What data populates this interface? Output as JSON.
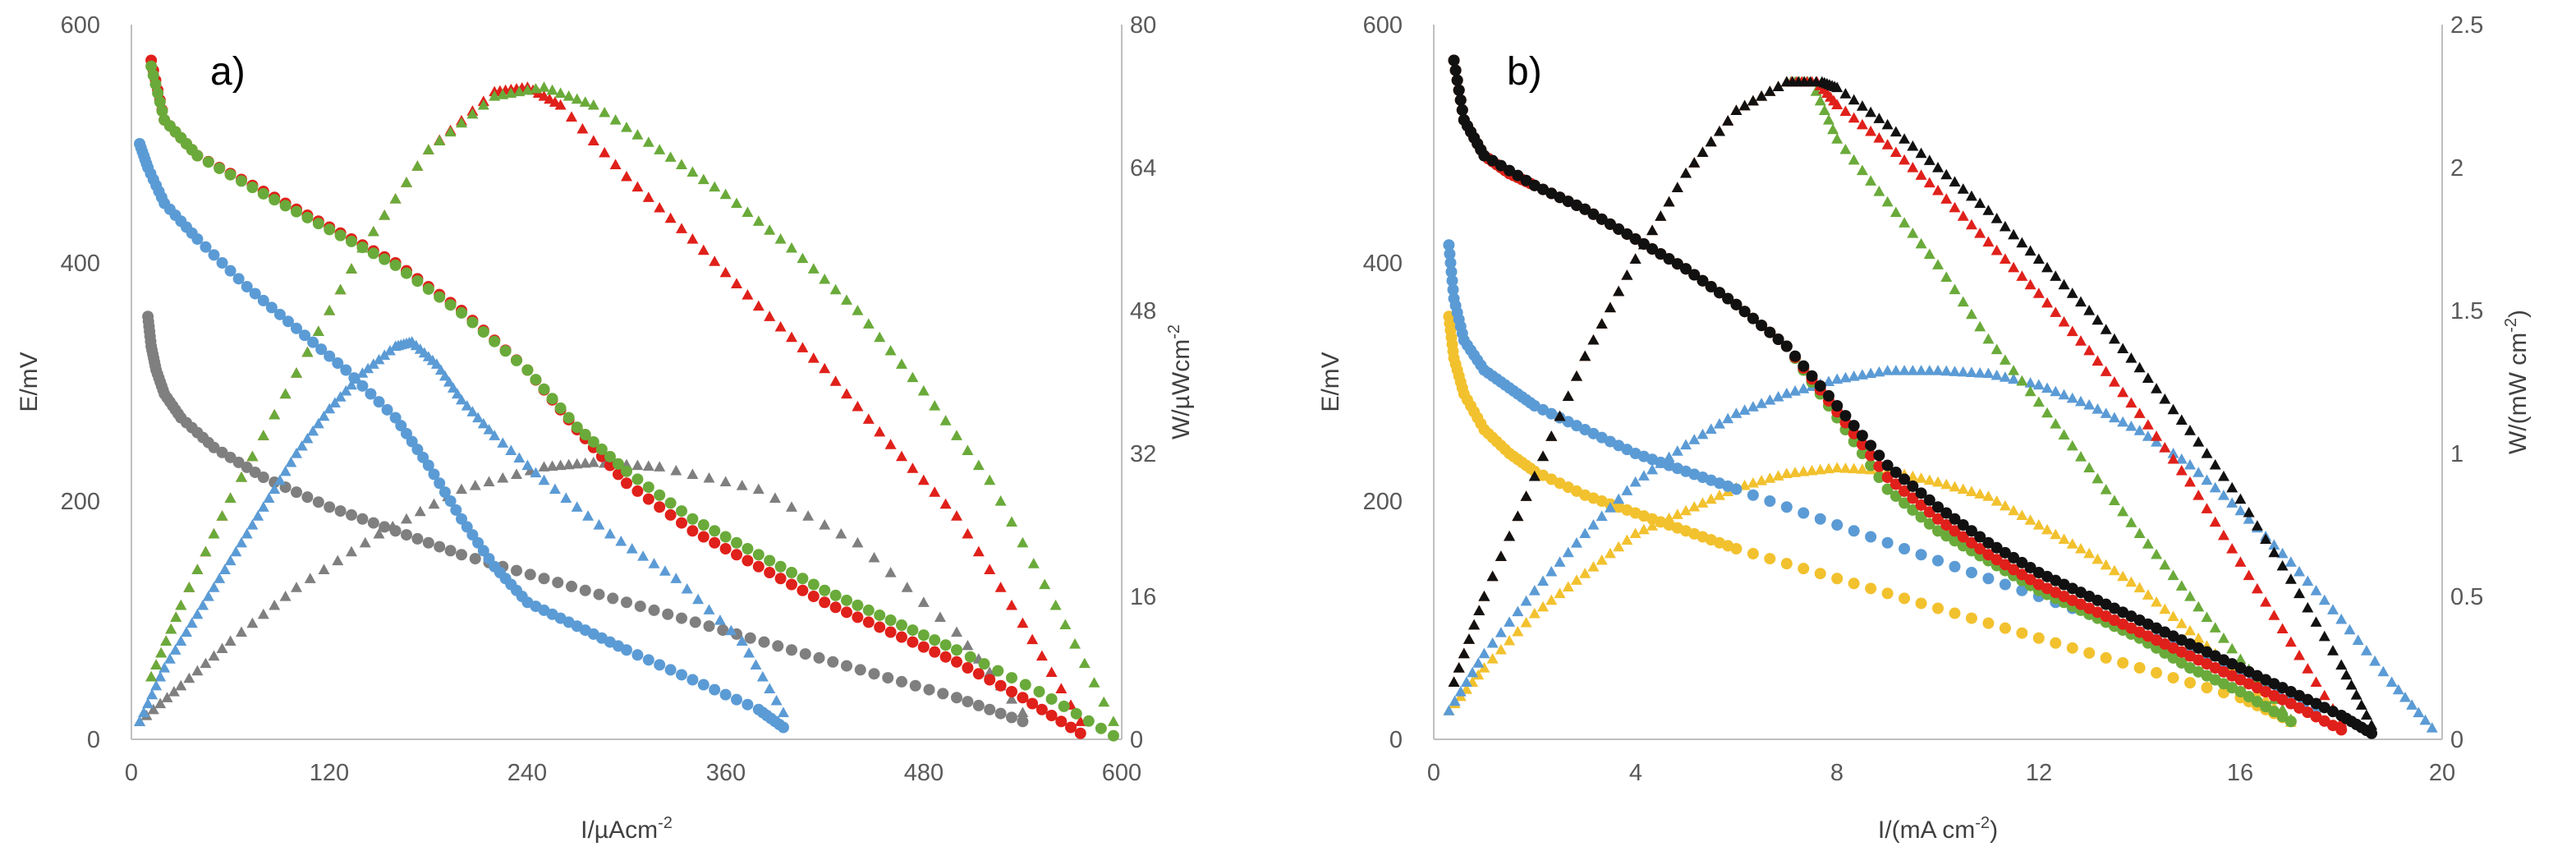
{
  "colors": {
    "gray": "#7f7f7f",
    "red": "#e0201a",
    "green": "#6aaa3a",
    "blue": "#5b9bd5",
    "black": "#111111",
    "yellow": "#f2c12e"
  },
  "chart_data": [
    {
      "type": "scatter",
      "panel_label": "a)",
      "xlabel": "I/µAcm",
      "xlabel_sup": "-2",
      "ylabel": "E/mV",
      "y2label": "W/µWcm",
      "y2label_sup": "-2",
      "xlim": [
        0,
        600
      ],
      "ylim": [
        0,
        600
      ],
      "y2lim": [
        0,
        80
      ],
      "x_ticks": [
        "0",
        "120",
        "240",
        "360",
        "480",
        "600"
      ],
      "y_ticks": [
        "0",
        "200",
        "400",
        "600"
      ],
      "y2_ticks": [
        "0",
        "16",
        "32",
        "48",
        "64",
        "80"
      ],
      "grid": false,
      "series": [
        {
          "name": "gray polarization",
          "color": "gray",
          "marker": "circle",
          "axis": "left",
          "x": [
            10,
            12,
            15,
            20,
            30,
            50,
            80,
            120,
            160,
            200,
            250,
            300,
            350,
            400,
            450,
            500,
            540
          ],
          "y": [
            355,
            330,
            310,
            290,
            270,
            245,
            220,
            195,
            175,
            155,
            135,
            115,
            95,
            75,
            55,
            35,
            15
          ]
        },
        {
          "name": "gray power",
          "color": "gray",
          "marker": "triangle",
          "axis": "right",
          "x": [
            5,
            30,
            60,
            100,
            150,
            200,
            250,
            280,
            320,
            380,
            440,
            500,
            540
          ],
          "y": [
            2,
            6,
            11,
            17,
            23,
            28,
            30.5,
            31,
            30.5,
            28,
            22,
            12,
            3
          ]
        },
        {
          "name": "blue polarization",
          "color": "blue",
          "marker": "circle",
          "axis": "left",
          "x": [
            5,
            10,
            20,
            40,
            70,
            100,
            130,
            160,
            180,
            200,
            220,
            240,
            270,
            300,
            340,
            380,
            395
          ],
          "y": [
            500,
            480,
            450,
            420,
            380,
            345,
            310,
            270,
            230,
            185,
            145,
            115,
            95,
            75,
            50,
            25,
            10
          ]
        },
        {
          "name": "blue power",
          "color": "blue",
          "marker": "triangle",
          "axis": "right",
          "x": [
            5,
            20,
            40,
            60,
            80,
            100,
            120,
            140,
            160,
            170,
            185,
            200,
            220,
            250,
            290,
            330,
            370,
            395
          ],
          "y": [
            2,
            8,
            14,
            20,
            26,
            32,
            37,
            41,
            44,
            44.5,
            42,
            38,
            34,
            29,
            23,
            18,
            11,
            3
          ]
        },
        {
          "name": "red polarization",
          "color": "red",
          "marker": "circle",
          "axis": "left",
          "x": [
            12,
            20,
            40,
            80,
            120,
            160,
            200,
            240,
            270,
            300,
            340,
            380,
            420,
            460,
            500,
            540,
            575
          ],
          "y": [
            570,
            520,
            490,
            460,
            430,
            400,
            360,
            310,
            260,
            215,
            175,
            145,
            115,
            90,
            65,
            35,
            5
          ]
        },
        {
          "name": "red power",
          "color": "red",
          "marker": "triangle",
          "axis": "right",
          "x": [
            12,
            30,
            60,
            100,
            140,
            180,
            220,
            240,
            260,
            300,
            340,
            380,
            420,
            460,
            500,
            540,
            575
          ],
          "y": [
            7,
            15,
            27,
            41,
            55,
            66,
            72.5,
            73,
            71,
            63,
            56,
            48.5,
            41.5,
            33,
            25,
            13,
            2
          ]
        },
        {
          "name": "green polarization",
          "color": "green",
          "marker": "circle",
          "axis": "left",
          "x": [
            12,
            20,
            40,
            80,
            120,
            160,
            200,
            240,
            270,
            300,
            340,
            380,
            420,
            460,
            500,
            550,
            595
          ],
          "y": [
            565,
            520,
            490,
            458,
            428,
            398,
            358,
            310,
            262,
            225,
            185,
            155,
            125,
            100,
            75,
            40,
            3
          ]
        },
        {
          "name": "green power",
          "color": "green",
          "marker": "triangle",
          "axis": "right",
          "x": [
            12,
            30,
            60,
            100,
            140,
            180,
            220,
            250,
            280,
            320,
            360,
            400,
            440,
            480,
            520,
            560,
            595
          ],
          "y": [
            7,
            15,
            27,
            41,
            55,
            66,
            72,
            73,
            71,
            66,
            61,
            55,
            48,
            39,
            29,
            15,
            2
          ]
        }
      ]
    },
    {
      "type": "scatter",
      "panel_label": "b)",
      "xlabel": "I/(mA cm",
      "xlabel_sup": "-2",
      "xlabel_end": ")",
      "ylabel": "E/mV",
      "y2label": "W/(mW cm",
      "y2label_sup": "-2",
      "y2label_end": ")",
      "xlim": [
        0,
        20
      ],
      "ylim": [
        0,
        600
      ],
      "y2lim": [
        0,
        2.5
      ],
      "x_ticks": [
        "0",
        "4",
        "8",
        "12",
        "16",
        "20"
      ],
      "y_ticks": [
        "0",
        "200",
        "400",
        "600"
      ],
      "y2_ticks": [
        "0",
        "0.5",
        "1",
        "1.5",
        "2",
        "2.5"
      ],
      "grid": false,
      "series": [
        {
          "name": "yellow polarization",
          "color": "yellow",
          "marker": "circle",
          "axis": "left",
          "x": [
            0.3,
            0.4,
            0.6,
            1,
            1.5,
            2,
            3,
            4,
            5,
            6,
            8,
            10,
            12,
            14,
            16,
            17
          ],
          "y": [
            355,
            320,
            290,
            260,
            240,
            225,
            205,
            190,
            175,
            160,
            135,
            110,
            85,
            60,
            35,
            15
          ]
        },
        {
          "name": "yellow power",
          "color": "yellow",
          "marker": "triangle",
          "axis": "right",
          "x": [
            0.3,
            1,
            2,
            3,
            4,
            5,
            6,
            7,
            8,
            9,
            10,
            11,
            12,
            13,
            14,
            15,
            16,
            17
          ],
          "y": [
            0.1,
            0.25,
            0.44,
            0.58,
            0.72,
            0.8,
            0.88,
            0.93,
            0.95,
            0.94,
            0.9,
            0.85,
            0.75,
            0.65,
            0.53,
            0.38,
            0.22,
            0.06
          ]
        },
        {
          "name": "blue polarization",
          "color": "blue",
          "marker": "circle",
          "axis": "left",
          "x": [
            0.3,
            0.4,
            0.6,
            1,
            1.5,
            2,
            3,
            4,
            5,
            6,
            8,
            10,
            12,
            14,
            16,
            17.5
          ],
          "y": [
            415,
            370,
            335,
            310,
            295,
            280,
            260,
            240,
            225,
            210,
            180,
            150,
            120,
            90,
            55,
            25
          ]
        },
        {
          "name": "blue power",
          "color": "blue",
          "marker": "triangle",
          "axis": "right",
          "x": [
            0.3,
            1,
            2,
            3,
            4,
            5,
            6,
            7,
            8,
            9,
            10,
            11,
            12,
            13,
            14,
            15,
            16,
            17,
            18,
            19,
            19.8
          ],
          "y": [
            0.1,
            0.3,
            0.52,
            0.72,
            0.9,
            1.03,
            1.14,
            1.21,
            1.26,
            1.29,
            1.29,
            1.28,
            1.24,
            1.17,
            1.08,
            0.96,
            0.8,
            0.62,
            0.42,
            0.2,
            0.04
          ]
        },
        {
          "name": "green polarization",
          "color": "green",
          "marker": "circle",
          "axis": "left",
          "x": [
            0.4,
            0.6,
            1,
            1.5,
            2,
            3,
            4,
            5,
            6,
            7,
            8,
            9,
            10,
            11,
            12,
            13,
            14,
            15,
            16,
            17
          ],
          "y": [
            570,
            520,
            490,
            475,
            465,
            445,
            420,
            395,
            365,
            330,
            270,
            210,
            175,
            150,
            125,
            105,
            85,
            60,
            40,
            15
          ]
        },
        {
          "name": "green power",
          "color": "green",
          "marker": "triangle",
          "axis": "right",
          "x": [
            0.4,
            1,
            2,
            3,
            4,
            5,
            6,
            7,
            7.5,
            8,
            9,
            10,
            11,
            12,
            13,
            14,
            15,
            16,
            17
          ],
          "y": [
            0.2,
            0.5,
            0.92,
            1.34,
            1.68,
            1.98,
            2.2,
            2.3,
            2.3,
            2.1,
            1.88,
            1.66,
            1.4,
            1.18,
            0.95,
            0.72,
            0.5,
            0.28,
            0.07
          ]
        },
        {
          "name": "red polarization",
          "color": "red",
          "marker": "circle",
          "axis": "left",
          "x": [
            0.4,
            0.6,
            1,
            1.5,
            2,
            3,
            4,
            5,
            6,
            7,
            8,
            9,
            10,
            11,
            12,
            13,
            14,
            15,
            16,
            17,
            18
          ],
          "y": [
            570,
            520,
            490,
            475,
            465,
            445,
            420,
            395,
            365,
            330,
            275,
            220,
            185,
            155,
            130,
            110,
            90,
            70,
            50,
            30,
            8
          ]
        },
        {
          "name": "red power",
          "color": "red",
          "marker": "triangle",
          "axis": "right",
          "x": [
            0.4,
            1,
            2,
            3,
            4,
            5,
            6,
            7,
            7.6,
            8,
            9,
            10,
            11,
            12,
            13,
            14,
            15,
            16,
            17,
            18
          ],
          "y": [
            0.2,
            0.5,
            0.92,
            1.34,
            1.68,
            1.98,
            2.2,
            2.3,
            2.3,
            2.22,
            2.08,
            1.92,
            1.74,
            1.56,
            1.36,
            1.14,
            0.9,
            0.62,
            0.34,
            0.06
          ]
        },
        {
          "name": "black polarization",
          "color": "black",
          "marker": "circle",
          "axis": "left",
          "x": [
            0.4,
            0.6,
            1,
            2,
            3,
            4,
            5,
            6,
            7,
            8,
            9,
            10,
            11,
            12,
            13,
            14,
            15,
            16,
            17,
            18,
            18.6
          ],
          "y": [
            570,
            520,
            490,
            465,
            445,
            420,
            395,
            365,
            330,
            280,
            230,
            195,
            165,
            140,
            120,
            100,
            80,
            60,
            40,
            20,
            5
          ]
        },
        {
          "name": "black power",
          "color": "black",
          "marker": "triangle",
          "axis": "right",
          "x": [
            0.4,
            1,
            2,
            3,
            4,
            5,
            6,
            7,
            7.7,
            8,
            9,
            10,
            11,
            12,
            13,
            14,
            15,
            16,
            17,
            18,
            18.6
          ],
          "y": [
            0.2,
            0.5,
            0.92,
            1.34,
            1.68,
            1.98,
            2.2,
            2.3,
            2.3,
            2.28,
            2.15,
            2.0,
            1.85,
            1.68,
            1.5,
            1.3,
            1.08,
            0.84,
            0.56,
            0.26,
            0.05
          ]
        }
      ]
    }
  ]
}
